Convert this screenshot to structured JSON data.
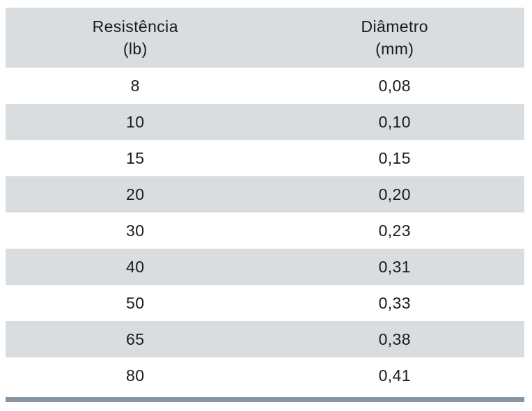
{
  "table": {
    "columns": [
      {
        "title": "Resistência",
        "unit": "(lb)"
      },
      {
        "title": "Diâmetro",
        "unit": "(mm)"
      }
    ],
    "rows": [
      {
        "resistencia": "8",
        "diametro": "0,08"
      },
      {
        "resistencia": "10",
        "diametro": "0,10"
      },
      {
        "resistencia": "15",
        "diametro": "0,15"
      },
      {
        "resistencia": "20",
        "diametro": "0,20"
      },
      {
        "resistencia": "30",
        "diametro": "0,23"
      },
      {
        "resistencia": "40",
        "diametro": "0,31"
      },
      {
        "resistencia": "50",
        "diametro": "0,33"
      },
      {
        "resistencia": "65",
        "diametro": "0,38"
      },
      {
        "resistencia": "80",
        "diametro": "0,41"
      }
    ]
  },
  "chart_data": {
    "type": "table",
    "title": "",
    "columns": [
      "Resistência (lb)",
      "Diâmetro (mm)"
    ],
    "rows": [
      [
        8,
        "0,08"
      ],
      [
        10,
        "0,10"
      ],
      [
        15,
        "0,15"
      ],
      [
        20,
        "0,20"
      ],
      [
        30,
        "0,23"
      ],
      [
        40,
        "0,31"
      ],
      [
        50,
        "0,33"
      ],
      [
        65,
        "0,38"
      ],
      [
        80,
        "0,41"
      ]
    ]
  },
  "colors": {
    "header_bg": "#d9dde0",
    "row_alt_bg": "#dadde0",
    "row_bg": "#ffffff",
    "bottom_bar": "#8896a2",
    "text_color": "#1b1b1d"
  }
}
